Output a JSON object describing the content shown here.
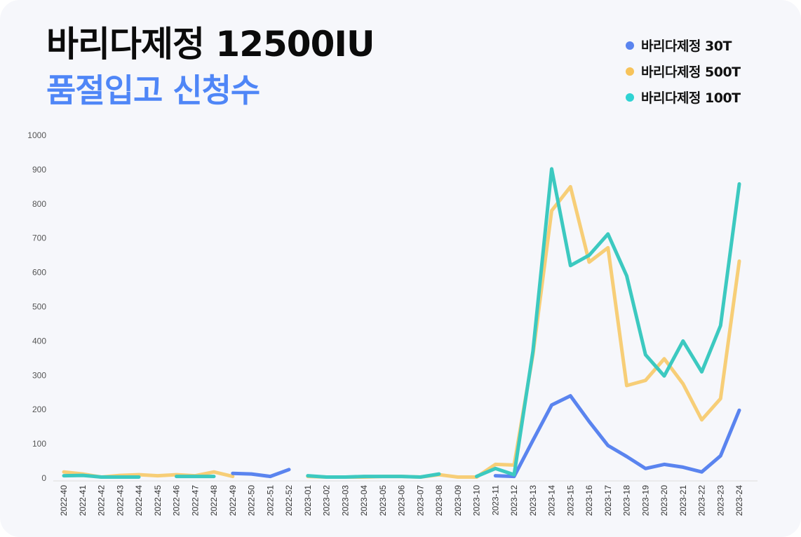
{
  "title": "바리다제정 12500IU",
  "subtitle": "품절입고 신청수",
  "colors": {
    "accent": "#4f86f7",
    "title": "#0b0b0b"
  },
  "legend": {
    "items": [
      {
        "label": "바리다제정 30T",
        "color": "#5a84ef"
      },
      {
        "label": "바리다제정 500T",
        "color": "#f7c35a"
      },
      {
        "label": "바리다제정 100T",
        "color": "#2fd3d3"
      }
    ]
  },
  "chart_data": {
    "type": "line",
    "title": "바리다제정 12500IU 품절입고 신청수",
    "xlabel": "",
    "ylabel": "",
    "ylim": [
      0,
      1000
    ],
    "yticks": [
      0,
      100,
      200,
      300,
      400,
      500,
      600,
      700,
      800,
      900,
      1000
    ],
    "grid": false,
    "legend_position": "top-right",
    "categories": [
      "2022-40",
      "2022-41",
      "2022-42",
      "2022-43",
      "2022-44",
      "2022-45",
      "2022-46",
      "2022-47",
      "2022-48",
      "2022-49",
      "2022-50",
      "2022-51",
      "2022-52",
      "2023-01",
      "2023-02",
      "2023-03",
      "2023-04",
      "2023-05",
      "2023-06",
      "2023-07",
      "2023-08",
      "2023-09",
      "2023-10",
      "2023-11",
      "2023-12",
      "2023-13",
      "2023-14",
      "2023-15",
      "2023-16",
      "2023-17",
      "2023-18",
      "2023-19",
      "2023-20",
      "2023-21",
      "2023-22",
      "2023-23",
      "2023-24"
    ],
    "series": [
      {
        "name": "바리다제정 500T",
        "color": "#f7c968",
        "values": [
          18,
          12,
          3,
          8,
          10,
          7,
          10,
          7,
          18,
          5,
          null,
          null,
          null,
          5,
          3,
          3,
          3,
          5,
          5,
          3,
          10,
          3,
          3,
          40,
          38,
          360,
          780,
          850,
          630,
          672,
          270,
          285,
          348,
          275,
          170,
          232,
          633
        ]
      },
      {
        "name": "바리다제정 30T",
        "color": "#5a84ef",
        "values": [
          null,
          null,
          null,
          null,
          null,
          null,
          null,
          null,
          null,
          14,
          12,
          5,
          25,
          null,
          null,
          null,
          null,
          null,
          null,
          null,
          null,
          null,
          null,
          7,
          5,
          110,
          213,
          240,
          165,
          95,
          63,
          28,
          40,
          32,
          18,
          65,
          198
        ]
      },
      {
        "name": "바리다제정 100T",
        "color": "#3cc9c0",
        "values": [
          7,
          8,
          3,
          3,
          3,
          null,
          5,
          5,
          5,
          null,
          null,
          null,
          null,
          7,
          3,
          3,
          5,
          5,
          5,
          3,
          12,
          null,
          5,
          28,
          10,
          370,
          902,
          620,
          650,
          712,
          590,
          360,
          298,
          400,
          310,
          445,
          858
        ]
      }
    ]
  }
}
